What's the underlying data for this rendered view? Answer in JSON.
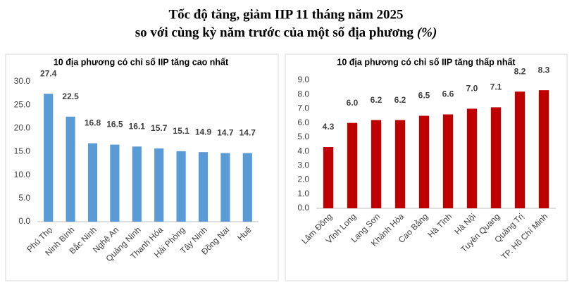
{
  "title": "Tốc độ tăng, giảm IIP 11 tháng năm 2025",
  "subtitle": "so với cùng kỳ năm trước của một số địa phương",
  "unit": "(%)",
  "chart_data": [
    {
      "type": "bar",
      "title": "10 địa phương có chỉ số IIP tăng cao nhất",
      "categories": [
        "Phú Thọ",
        "Ninh Bình",
        "Bắc Ninh",
        "Nghệ An",
        "Quảng Ninh",
        "Thanh Hóa",
        "Hải Phòng",
        "Tây Ninh",
        "Đồng Nai",
        "Huế"
      ],
      "values": [
        27.4,
        22.5,
        16.8,
        16.5,
        16.1,
        15.7,
        15.1,
        14.9,
        14.7,
        14.7
      ],
      "color": "#5b9bd5",
      "ylim": [
        0,
        30
      ],
      "yticks": [
        {
          "value": 0,
          "label": "0.0"
        },
        {
          "value": 5,
          "label": "5.0"
        },
        {
          "value": 10,
          "label": "10.0"
        },
        {
          "value": 15,
          "label": "15.0"
        },
        {
          "value": 20,
          "label": "20.0"
        },
        {
          "value": 25,
          "label": "25.0"
        },
        {
          "value": 30,
          "label": "30.0"
        }
      ],
      "grid": false
    },
    {
      "type": "bar",
      "title": "10 địa phương có chỉ số IIP tăng thấp nhất",
      "categories": [
        "Lâm Đồng",
        "Vĩnh Long",
        "Lạng Sơn",
        "Khánh Hòa",
        "Cao Bằng",
        "Hà Tĩnh",
        "Hà Nội",
        "Tuyên Quang",
        "Quảng Trị",
        "TP. Hồ Chí Minh"
      ],
      "values": [
        4.3,
        6.0,
        6.2,
        6.2,
        6.5,
        6.6,
        7.0,
        7.1,
        8.2,
        8.3
      ],
      "value_labels": [
        "4.3",
        "6.0",
        "6.2",
        "6.2",
        "6.5",
        "6.6",
        "7.0",
        "7.1",
        "8.2",
        "8.3"
      ],
      "color": "#c00000",
      "ylim": [
        0,
        9
      ],
      "yticks": [
        {
          "value": 0,
          "label": "0.0"
        },
        {
          "value": 1,
          "label": "1.0"
        },
        {
          "value": 2,
          "label": "2.0"
        },
        {
          "value": 3,
          "label": "3.0"
        },
        {
          "value": 4,
          "label": "4.0"
        },
        {
          "value": 5,
          "label": "5.0"
        },
        {
          "value": 6,
          "label": "6.0"
        },
        {
          "value": 7,
          "label": "7.0"
        },
        {
          "value": 8,
          "label": "8.0"
        },
        {
          "value": 9,
          "label": "9.0"
        }
      ],
      "grid": false
    }
  ]
}
